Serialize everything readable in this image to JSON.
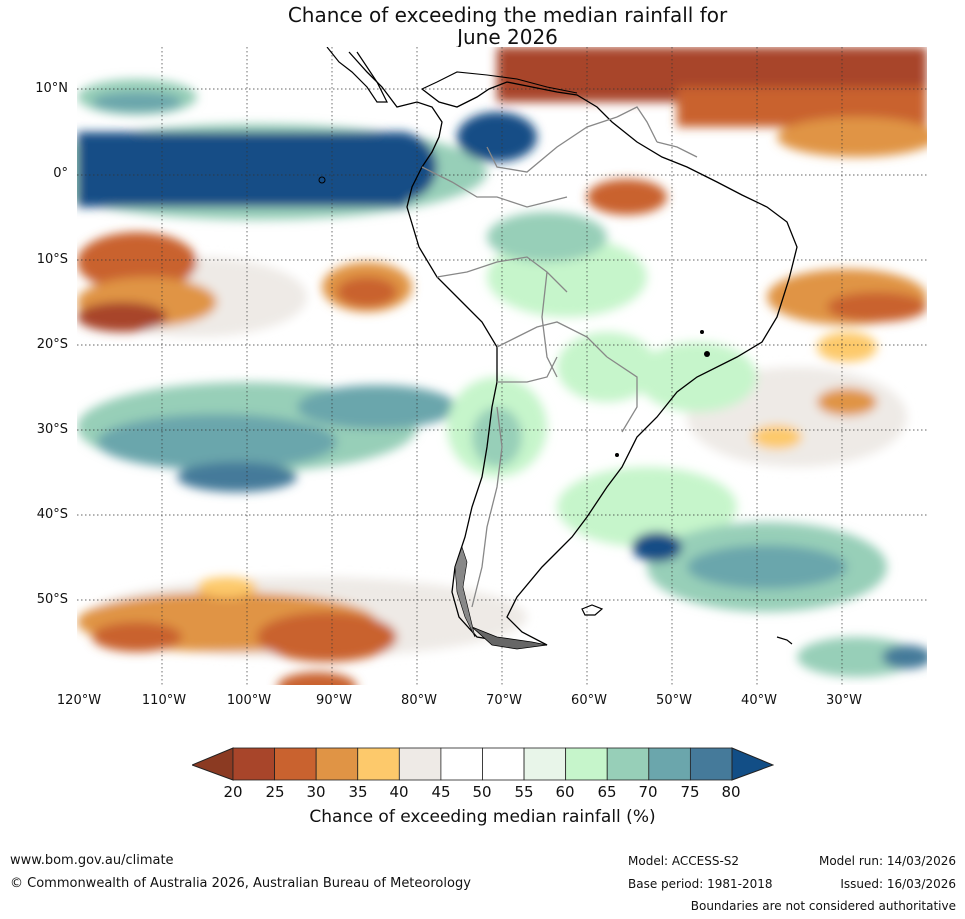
{
  "title_line1": "Chance of exceeding the median rainfall for",
  "title_line2": "June 2026",
  "map": {
    "lat_labels": [
      "10°N",
      "0°",
      "10°S",
      "20°S",
      "30°S",
      "40°S",
      "50°S"
    ],
    "lon_labels": [
      "120°W",
      "110°W",
      "100°W",
      "90°W",
      "80°W",
      "70°W",
      "60°W",
      "50°W",
      "40°W",
      "30°W"
    ],
    "extent": {
      "lon_min": -120,
      "lon_max": -20,
      "lat_min": -60,
      "lat_max": 15
    }
  },
  "colorbar": {
    "ticks": [
      "20",
      "25",
      "30",
      "35",
      "40",
      "45",
      "50",
      "55",
      "60",
      "65",
      "70",
      "75",
      "80"
    ],
    "colors": [
      "#a8452a",
      "#c9622f",
      "#e09445",
      "#fdc96b",
      "#eeeae6",
      "#ffffff",
      "#ffffff",
      "#e8f5e9",
      "#c6f5cb",
      "#97cfb8",
      "#6ba6ac",
      "#457a9a",
      "#124e86"
    ],
    "under_color": "#8b3a22",
    "label": "Chance of exceeding median rainfall (%)"
  },
  "footer": {
    "website": "www.bom.gov.au/climate",
    "copyright": "© Commonwealth of Australia 2026, Australian Bureau of Meteorology",
    "model": "Model: ACCESS-S2",
    "base_period": "Base period: 1981-2018",
    "model_run": "Model run: 14/03/2026",
    "issued": "Issued: 16/03/2026",
    "boundaries": "Boundaries are not considered authoritative"
  }
}
